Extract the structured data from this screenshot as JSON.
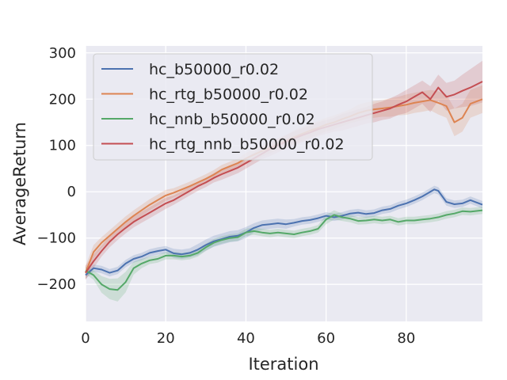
{
  "chart_data": {
    "type": "line",
    "title": "",
    "xlabel": "Iteration",
    "ylabel": "AverageReturn",
    "xlim": [
      0,
      99
    ],
    "ylim": [
      -280,
      315
    ],
    "xticks": [
      0,
      20,
      40,
      60,
      80
    ],
    "yticks": [
      -200,
      -100,
      0,
      100,
      200,
      300
    ],
    "grid": true,
    "legend_position": "top-left",
    "series": [
      {
        "name": "hc_b50000_r0.02",
        "color": "#4c72b0",
        "x": [
          0,
          2,
          4,
          6,
          8,
          10,
          12,
          14,
          16,
          18,
          20,
          22,
          24,
          26,
          28,
          30,
          32,
          34,
          36,
          38,
          40,
          42,
          44,
          46,
          48,
          50,
          52,
          54,
          56,
          58,
          60,
          62,
          64,
          66,
          68,
          70,
          72,
          74,
          76,
          78,
          80,
          82,
          84,
          86,
          87,
          88,
          90,
          92,
          94,
          96,
          99
        ],
        "values": [
          -180,
          -165,
          -168,
          -175,
          -170,
          -155,
          -145,
          -140,
          -132,
          -128,
          -125,
          -133,
          -135,
          -132,
          -125,
          -115,
          -107,
          -102,
          -97,
          -95,
          -88,
          -78,
          -72,
          -70,
          -68,
          -70,
          -67,
          -63,
          -61,
          -57,
          -52,
          -55,
          -52,
          -47,
          -45,
          -48,
          -46,
          -40,
          -37,
          -30,
          -25,
          -18,
          -10,
          0,
          5,
          2,
          -22,
          -27,
          -25,
          -18,
          -28
        ],
        "band": [
          8,
          8,
          8,
          8,
          8,
          8,
          8,
          8,
          8,
          8,
          8,
          10,
          10,
          10,
          12,
          12,
          12,
          12,
          12,
          12,
          12,
          10,
          10,
          10,
          10,
          10,
          8,
          8,
          8,
          8,
          8,
          8,
          8,
          8,
          8,
          8,
          8,
          8,
          8,
          8,
          8,
          8,
          8,
          8,
          8,
          8,
          8,
          8,
          8,
          8,
          8
        ]
      },
      {
        "name": "hc_rtg_b50000_r0.02",
        "color": "#dd8452",
        "x": [
          0,
          2,
          4,
          6,
          8,
          10,
          12,
          14,
          16,
          18,
          20,
          22,
          24,
          26,
          28,
          30,
          32,
          34,
          36,
          38,
          40,
          42,
          44,
          46,
          48,
          50,
          52,
          54,
          56,
          58,
          60,
          62,
          64,
          66,
          68,
          70,
          72,
          74,
          76,
          78,
          80,
          82,
          84,
          86,
          88,
          90,
          92,
          94,
          96,
          99
        ],
        "values": [
          -175,
          -130,
          -110,
          -95,
          -80,
          -65,
          -52,
          -40,
          -28,
          -18,
          -8,
          -2,
          5,
          12,
          20,
          28,
          37,
          48,
          55,
          62,
          72,
          80,
          88,
          95,
          103,
          110,
          118,
          125,
          132,
          138,
          145,
          150,
          157,
          163,
          170,
          175,
          178,
          180,
          182,
          185,
          188,
          192,
          195,
          198,
          192,
          185,
          150,
          160,
          190,
          200
        ],
        "band": [
          15,
          15,
          12,
          12,
          12,
          12,
          12,
          12,
          12,
          12,
          12,
          10,
          10,
          10,
          10,
          10,
          10,
          10,
          10,
          10,
          12,
          12,
          12,
          12,
          12,
          12,
          15,
          15,
          15,
          15,
          15,
          15,
          15,
          15,
          18,
          18,
          18,
          18,
          20,
          20,
          22,
          22,
          22,
          22,
          25,
          25,
          30,
          30,
          30,
          30
        ]
      },
      {
        "name": "hc_nnb_b50000_r0.02",
        "color": "#55a868",
        "x": [
          0,
          2,
          4,
          6,
          8,
          10,
          12,
          14,
          16,
          18,
          20,
          22,
          24,
          26,
          28,
          30,
          32,
          34,
          36,
          38,
          40,
          42,
          44,
          46,
          48,
          50,
          52,
          54,
          56,
          58,
          60,
          62,
          64,
          66,
          68,
          70,
          72,
          74,
          76,
          78,
          80,
          82,
          84,
          86,
          88,
          90,
          92,
          94,
          96,
          99
        ],
        "values": [
          -170,
          -180,
          -200,
          -210,
          -212,
          -195,
          -165,
          -155,
          -148,
          -145,
          -138,
          -138,
          -140,
          -138,
          -132,
          -120,
          -110,
          -104,
          -100,
          -98,
          -88,
          -85,
          -88,
          -90,
          -88,
          -90,
          -92,
          -88,
          -85,
          -80,
          -60,
          -50,
          -55,
          -58,
          -63,
          -62,
          -60,
          -62,
          -60,
          -65,
          -62,
          -62,
          -60,
          -58,
          -55,
          -50,
          -47,
          -42,
          -43,
          -40
        ],
        "band": [
          8,
          10,
          18,
          22,
          25,
          22,
          14,
          10,
          8,
          8,
          8,
          8,
          8,
          8,
          8,
          8,
          8,
          8,
          8,
          8,
          8,
          8,
          8,
          8,
          8,
          8,
          8,
          8,
          8,
          8,
          10,
          10,
          8,
          8,
          8,
          8,
          8,
          8,
          8,
          8,
          8,
          8,
          8,
          8,
          8,
          8,
          8,
          8,
          8,
          8
        ]
      },
      {
        "name": "hc_rtg_nnb_b50000_r0.02",
        "color": "#c44e52",
        "x": [
          0,
          2,
          4,
          6,
          8,
          10,
          12,
          14,
          16,
          18,
          20,
          22,
          24,
          26,
          28,
          30,
          32,
          34,
          36,
          38,
          40,
          42,
          44,
          46,
          48,
          50,
          52,
          54,
          56,
          58,
          60,
          62,
          64,
          66,
          68,
          70,
          72,
          74,
          76,
          78,
          80,
          82,
          84,
          86,
          88,
          90,
          92,
          94,
          96,
          99
        ],
        "values": [
          -175,
          -150,
          -128,
          -108,
          -92,
          -78,
          -65,
          -55,
          -45,
          -35,
          -25,
          -18,
          -8,
          2,
          12,
          20,
          30,
          38,
          45,
          52,
          62,
          72,
          82,
          92,
          100,
          108,
          115,
          122,
          128,
          135,
          140,
          145,
          150,
          155,
          160,
          165,
          170,
          175,
          180,
          188,
          195,
          205,
          215,
          200,
          225,
          205,
          210,
          218,
          225,
          238
        ],
        "band": [
          15,
          15,
          12,
          12,
          12,
          12,
          12,
          12,
          12,
          12,
          12,
          10,
          10,
          10,
          10,
          10,
          10,
          12,
          12,
          12,
          12,
          12,
          12,
          15,
          15,
          15,
          15,
          15,
          15,
          15,
          15,
          15,
          18,
          18,
          18,
          18,
          20,
          20,
          22,
          22,
          25,
          25,
          25,
          28,
          28,
          30,
          30,
          35,
          40,
          45
        ]
      }
    ]
  }
}
